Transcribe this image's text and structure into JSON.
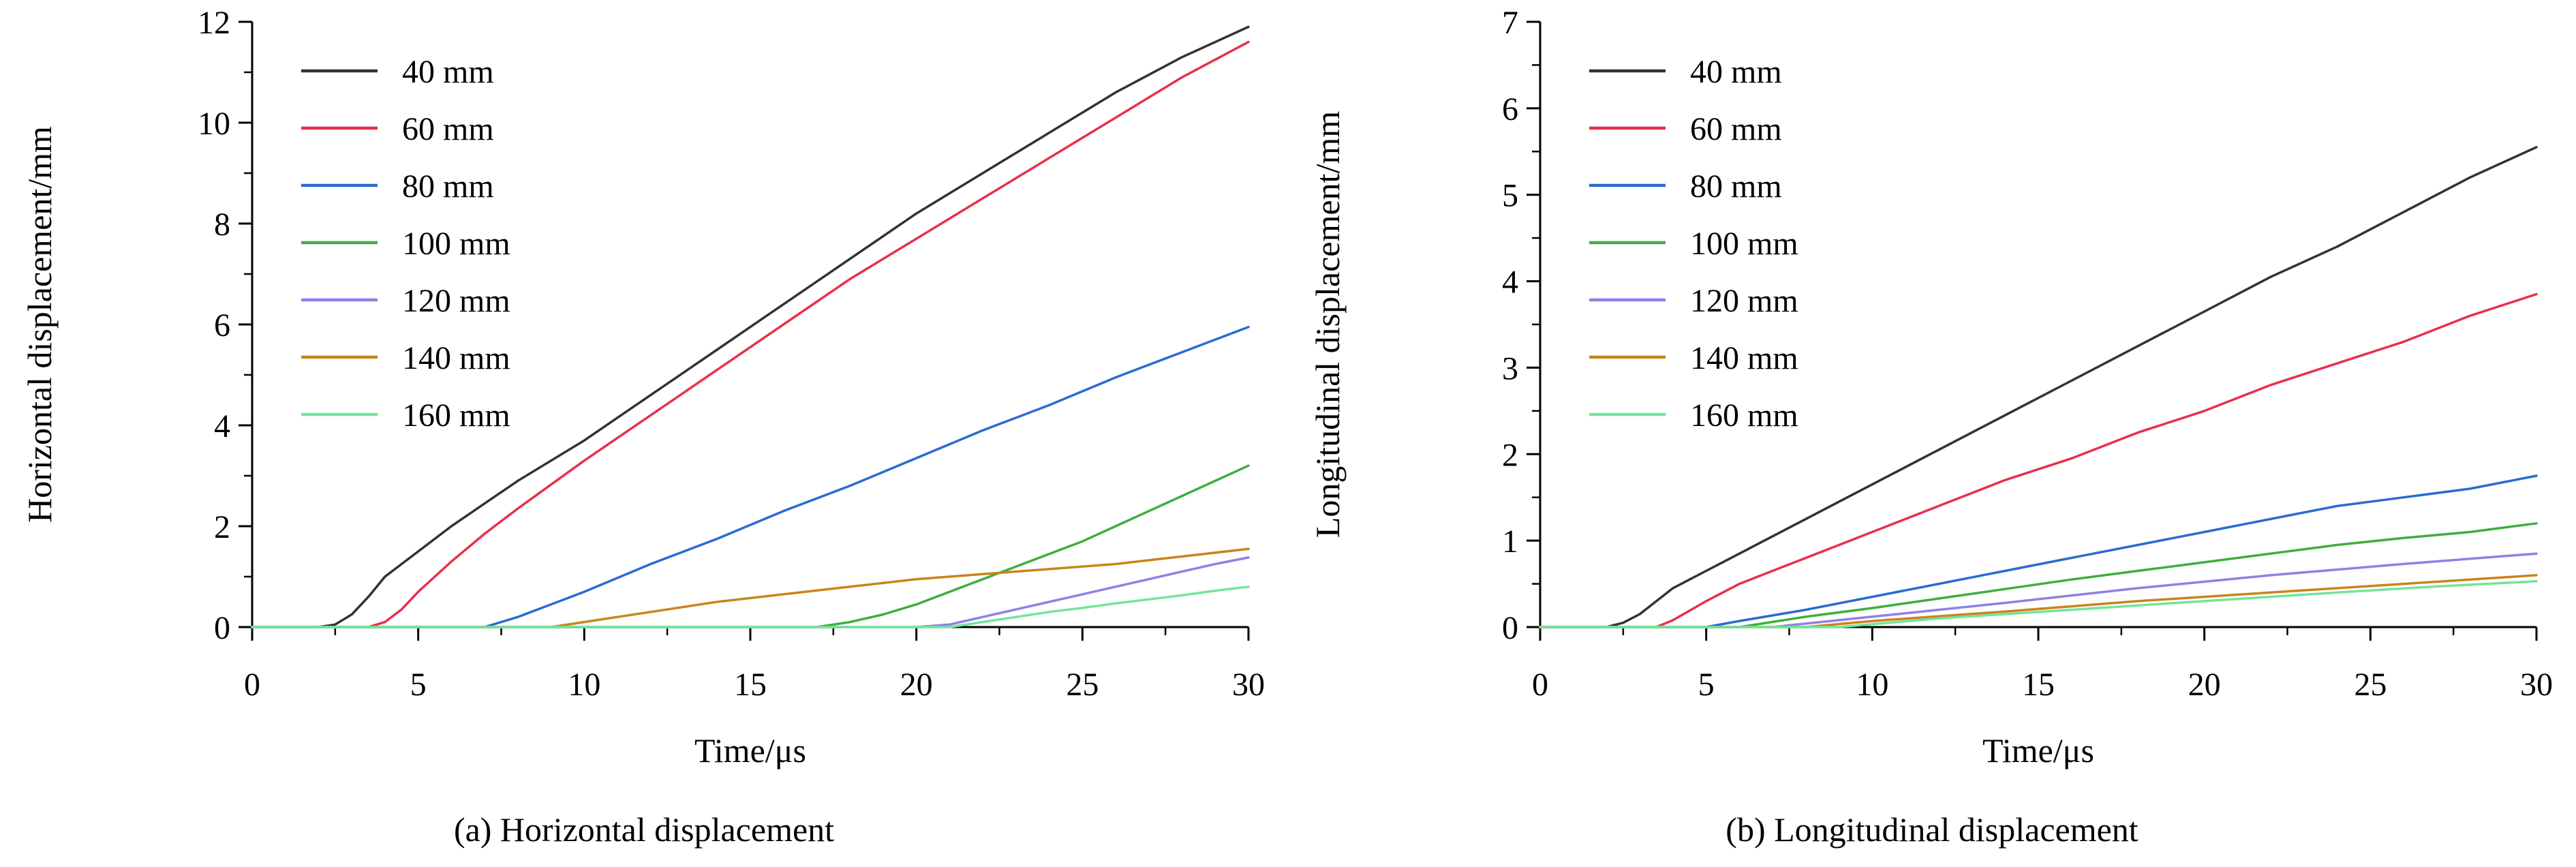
{
  "figure": {
    "background": "#ffffff",
    "axis_color": "#000000",
    "text_color": "#000000"
  },
  "chart_data": [
    {
      "type": "line",
      "caption": "(a) Horizontal displacement",
      "xlabel": "Time/μs",
      "ylabel": "Horizontal displacement/mm",
      "xlim": [
        0,
        30
      ],
      "ylim": [
        0,
        12
      ],
      "xticks": [
        0,
        5,
        10,
        15,
        20,
        25,
        30
      ],
      "yticks": [
        0,
        2,
        4,
        6,
        8,
        10,
        12
      ],
      "x_minor_step": 2.5,
      "y_minor_step": 1,
      "grid": false,
      "legend_position": "top-left",
      "series": [
        {
          "name": "40 mm",
          "color": "#333333",
          "points": [
            [
              0,
              0
            ],
            [
              2,
              0
            ],
            [
              2.5,
              0.05
            ],
            [
              3,
              0.25
            ],
            [
              3.5,
              0.6
            ],
            [
              4,
              1.0
            ],
            [
              5,
              1.5
            ],
            [
              6,
              2.0
            ],
            [
              7,
              2.45
            ],
            [
              8,
              2.9
            ],
            [
              10,
              3.7
            ],
            [
              12,
              4.6
            ],
            [
              14,
              5.5
            ],
            [
              16,
              6.4
            ],
            [
              18,
              7.3
            ],
            [
              20,
              8.2
            ],
            [
              22,
              9.0
            ],
            [
              24,
              9.8
            ],
            [
              26,
              10.6
            ],
            [
              28,
              11.3
            ],
            [
              30,
              11.9
            ]
          ]
        },
        {
          "name": "60 mm",
          "color": "#e8304c",
          "points": [
            [
              0,
              0
            ],
            [
              3.5,
              0
            ],
            [
              4,
              0.1
            ],
            [
              4.5,
              0.35
            ],
            [
              5,
              0.7
            ],
            [
              6,
              1.3
            ],
            [
              7,
              1.85
            ],
            [
              8,
              2.35
            ],
            [
              10,
              3.3
            ],
            [
              12,
              4.2
            ],
            [
              14,
              5.1
            ],
            [
              16,
              6.0
            ],
            [
              18,
              6.9
            ],
            [
              20,
              7.7
            ],
            [
              22,
              8.5
            ],
            [
              24,
              9.3
            ],
            [
              26,
              10.1
            ],
            [
              28,
              10.9
            ],
            [
              30,
              11.6
            ]
          ]
        },
        {
          "name": "80 mm",
          "color": "#2a6bd2",
          "points": [
            [
              0,
              0
            ],
            [
              7,
              0
            ],
            [
              8,
              0.2
            ],
            [
              9,
              0.45
            ],
            [
              10,
              0.7
            ],
            [
              12,
              1.25
            ],
            [
              14,
              1.75
            ],
            [
              16,
              2.3
            ],
            [
              18,
              2.8
            ],
            [
              20,
              3.35
            ],
            [
              22,
              3.9
            ],
            [
              24,
              4.4
            ],
            [
              26,
              4.95
            ],
            [
              28,
              5.45
            ],
            [
              30,
              5.95
            ]
          ]
        },
        {
          "name": "100 mm",
          "color": "#3fae3c",
          "points": [
            [
              0,
              0
            ],
            [
              17,
              0
            ],
            [
              18,
              0.1
            ],
            [
              19,
              0.25
            ],
            [
              20,
              0.45
            ],
            [
              21,
              0.7
            ],
            [
              22,
              0.95
            ],
            [
              23,
              1.2
            ],
            [
              24,
              1.45
            ],
            [
              25,
              1.7
            ],
            [
              26,
              2.0
            ],
            [
              27,
              2.3
            ],
            [
              28,
              2.6
            ],
            [
              29,
              2.9
            ],
            [
              30,
              3.2
            ]
          ]
        },
        {
          "name": "120 mm",
          "color": "#9180e4",
          "points": [
            [
              0,
              0
            ],
            [
              20,
              0
            ],
            [
              21,
              0.05
            ],
            [
              22,
              0.2
            ],
            [
              23,
              0.35
            ],
            [
              24,
              0.5
            ],
            [
              25,
              0.65
            ],
            [
              26,
              0.8
            ],
            [
              27,
              0.95
            ],
            [
              28,
              1.1
            ],
            [
              29,
              1.25
            ],
            [
              30,
              1.38
            ]
          ]
        },
        {
          "name": "140 mm",
          "color": "#c9841c",
          "points": [
            [
              0,
              0
            ],
            [
              9,
              0
            ],
            [
              10,
              0.1
            ],
            [
              12,
              0.3
            ],
            [
              14,
              0.5
            ],
            [
              16,
              0.65
            ],
            [
              18,
              0.8
            ],
            [
              20,
              0.95
            ],
            [
              22,
              1.05
            ],
            [
              24,
              1.15
            ],
            [
              26,
              1.25
            ],
            [
              28,
              1.4
            ],
            [
              30,
              1.55
            ]
          ]
        },
        {
          "name": "160 mm",
          "color": "#72e59a",
          "points": [
            [
              0,
              0
            ],
            [
              21,
              0
            ],
            [
              22,
              0.1
            ],
            [
              23,
              0.2
            ],
            [
              24,
              0.3
            ],
            [
              25,
              0.38
            ],
            [
              26,
              0.47
            ],
            [
              27,
              0.55
            ],
            [
              28,
              0.63
            ],
            [
              29,
              0.72
            ],
            [
              30,
              0.8
            ]
          ]
        }
      ]
    },
    {
      "type": "line",
      "caption": "(b) Longitudinal displacement",
      "xlabel": "Time/μs",
      "ylabel": "Longitudinal displacement/mm",
      "xlim": [
        0,
        30
      ],
      "ylim": [
        0,
        7
      ],
      "xticks": [
        0,
        5,
        10,
        15,
        20,
        25,
        30
      ],
      "yticks": [
        0,
        1,
        2,
        3,
        4,
        5,
        6,
        7
      ],
      "x_minor_step": 2.5,
      "y_minor_step": 0.5,
      "grid": false,
      "legend_position": "top-left",
      "series": [
        {
          "name": "40 mm",
          "color": "#333333",
          "points": [
            [
              0,
              0
            ],
            [
              2,
              0
            ],
            [
              2.5,
              0.05
            ],
            [
              3,
              0.15
            ],
            [
              3.5,
              0.3
            ],
            [
              4,
              0.45
            ],
            [
              4.5,
              0.55
            ],
            [
              5,
              0.65
            ],
            [
              6,
              0.85
            ],
            [
              7,
              1.05
            ],
            [
              8,
              1.25
            ],
            [
              10,
              1.65
            ],
            [
              12,
              2.05
            ],
            [
              14,
              2.45
            ],
            [
              16,
              2.85
            ],
            [
              18,
              3.25
            ],
            [
              20,
              3.65
            ],
            [
              22,
              4.05
            ],
            [
              24,
              4.4
            ],
            [
              26,
              4.8
            ],
            [
              28,
              5.2
            ],
            [
              30,
              5.55
            ]
          ]
        },
        {
          "name": "60 mm",
          "color": "#e8304c",
          "points": [
            [
              0,
              0
            ],
            [
              3.5,
              0
            ],
            [
              4,
              0.08
            ],
            [
              5,
              0.3
            ],
            [
              6,
              0.5
            ],
            [
              7,
              0.65
            ],
            [
              8,
              0.8
            ],
            [
              10,
              1.1
            ],
            [
              12,
              1.4
            ],
            [
              14,
              1.7
            ],
            [
              16,
              1.95
            ],
            [
              18,
              2.25
            ],
            [
              20,
              2.5
            ],
            [
              22,
              2.8
            ],
            [
              24,
              3.05
            ],
            [
              26,
              3.3
            ],
            [
              28,
              3.6
            ],
            [
              30,
              3.85
            ]
          ]
        },
        {
          "name": "80 mm",
          "color": "#2a6bd2",
          "points": [
            [
              0,
              0
            ],
            [
              5,
              0
            ],
            [
              6,
              0.07
            ],
            [
              8,
              0.2
            ],
            [
              10,
              0.35
            ],
            [
              12,
              0.5
            ],
            [
              14,
              0.65
            ],
            [
              16,
              0.8
            ],
            [
              18,
              0.95
            ],
            [
              20,
              1.1
            ],
            [
              22,
              1.25
            ],
            [
              24,
              1.4
            ],
            [
              26,
              1.5
            ],
            [
              28,
              1.6
            ],
            [
              30,
              1.75
            ]
          ]
        },
        {
          "name": "100 mm",
          "color": "#3fae3c",
          "points": [
            [
              0,
              0
            ],
            [
              6,
              0
            ],
            [
              8,
              0.12
            ],
            [
              10,
              0.22
            ],
            [
              12,
              0.33
            ],
            [
              14,
              0.44
            ],
            [
              16,
              0.55
            ],
            [
              18,
              0.65
            ],
            [
              20,
              0.75
            ],
            [
              22,
              0.85
            ],
            [
              24,
              0.95
            ],
            [
              26,
              1.03
            ],
            [
              28,
              1.1
            ],
            [
              30,
              1.2
            ]
          ]
        },
        {
          "name": "120 mm",
          "color": "#9180e4",
          "points": [
            [
              0,
              0
            ],
            [
              7,
              0
            ],
            [
              10,
              0.12
            ],
            [
              14,
              0.28
            ],
            [
              18,
              0.45
            ],
            [
              22,
              0.6
            ],
            [
              26,
              0.73
            ],
            [
              30,
              0.85
            ]
          ]
        },
        {
          "name": "140 mm",
          "color": "#c9841c",
          "points": [
            [
              0,
              0
            ],
            [
              8,
              0
            ],
            [
              10,
              0.07
            ],
            [
              14,
              0.18
            ],
            [
              18,
              0.3
            ],
            [
              22,
              0.4
            ],
            [
              26,
              0.5
            ],
            [
              30,
              0.6
            ]
          ]
        },
        {
          "name": "160 mm",
          "color": "#72e59a",
          "points": [
            [
              0,
              0
            ],
            [
              9,
              0
            ],
            [
              12,
              0.1
            ],
            [
              16,
              0.2
            ],
            [
              20,
              0.3
            ],
            [
              24,
              0.4
            ],
            [
              27,
              0.47
            ],
            [
              30,
              0.53
            ]
          ]
        }
      ]
    }
  ]
}
